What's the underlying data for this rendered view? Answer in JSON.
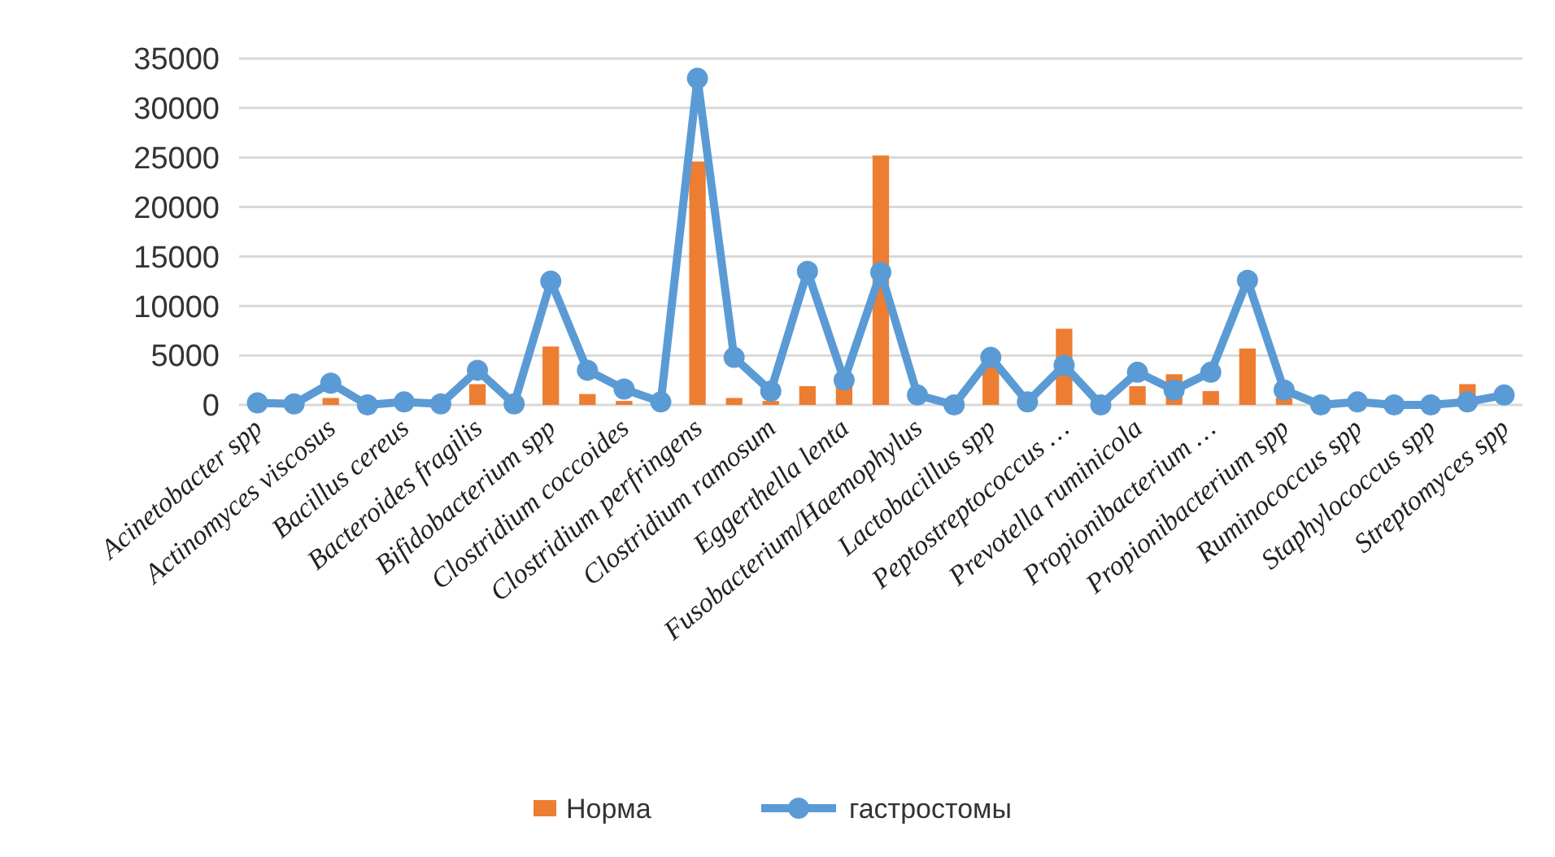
{
  "chart_data": {
    "type": "bar",
    "categories": [
      "Acinetobacter spp",
      null,
      "Actinomyces viscosus",
      null,
      "Bacillus cereus",
      null,
      "Bacteroides fragilis",
      null,
      "Bifidobacterium spp",
      null,
      "Clostridium coccoides",
      null,
      "Clostridium perfringens",
      null,
      "Clostridium ramosum",
      null,
      "Eggerthella lenta",
      null,
      "Fusobacterium/Haemophylus",
      null,
      "Lactobacillus spp",
      null,
      "Peptostreptococcus …",
      null,
      "Prevotella ruminicola",
      null,
      "Propionibacterium …",
      null,
      "Propionibacterium spp",
      null,
      "Ruminococcus spp",
      null,
      "Staphylococcus spp",
      null,
      "Streptomyces spp"
    ],
    "series": [
      {
        "name": "Норма",
        "color": "#ed7d31",
        "values": [
          0,
          0,
          700,
          0,
          0,
          0,
          2100,
          0,
          5900,
          1100,
          400,
          0,
          24600,
          700,
          400,
          1900,
          2000,
          25200,
          0,
          0,
          3800,
          0,
          7700,
          0,
          1900,
          3100,
          1400,
          5700,
          700,
          0,
          0,
          0,
          0,
          2100,
          0
        ]
      },
      {
        "name": "гастростомы",
        "type": "line",
        "color": "#5b9bd5",
        "marker": "circle",
        "values": [
          200,
          100,
          2200,
          0,
          300,
          100,
          3500,
          100,
          12500,
          3500,
          1600,
          300,
          33000,
          4800,
          1400,
          13500,
          2500,
          13400,
          1000,
          0,
          4800,
          300,
          4000,
          0,
          3300,
          1500,
          3300,
          12600,
          1500,
          0,
          300,
          0,
          0,
          300,
          1000
        ]
      }
    ],
    "ylim": [
      0,
      35000
    ],
    "yticks": [
      0,
      5000,
      10000,
      15000,
      20000,
      25000,
      30000,
      35000
    ],
    "grid": "y",
    "legend": "bottom"
  }
}
